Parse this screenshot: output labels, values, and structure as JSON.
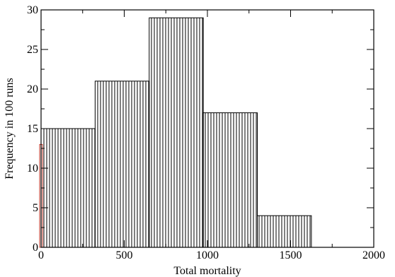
{
  "chart_data": {
    "type": "bar",
    "xlabel": "Total mortality",
    "ylabel": "Frequency in 100 runs",
    "xlim": [
      0,
      2000
    ],
    "ylim": [
      0,
      30
    ],
    "x_ticks": [
      0,
      500,
      1000,
      1500,
      2000
    ],
    "y_ticks": [
      0,
      5,
      10,
      15,
      20,
      25,
      30
    ],
    "grid": false,
    "bar_fill": "vertical-hatch",
    "bins": [
      {
        "x_start": 0,
        "x_end": 325,
        "value": 15
      },
      {
        "x_start": 325,
        "x_end": 650,
        "value": 21
      },
      {
        "x_start": 650,
        "x_end": 975,
        "value": 29
      },
      {
        "x_start": 975,
        "x_end": 1300,
        "value": 17
      },
      {
        "x_start": 1300,
        "x_end": 1625,
        "value": 4
      }
    ],
    "red_bar": {
      "x_start": 0,
      "x_end": 12,
      "value": 13,
      "color": "#c0392b"
    }
  }
}
